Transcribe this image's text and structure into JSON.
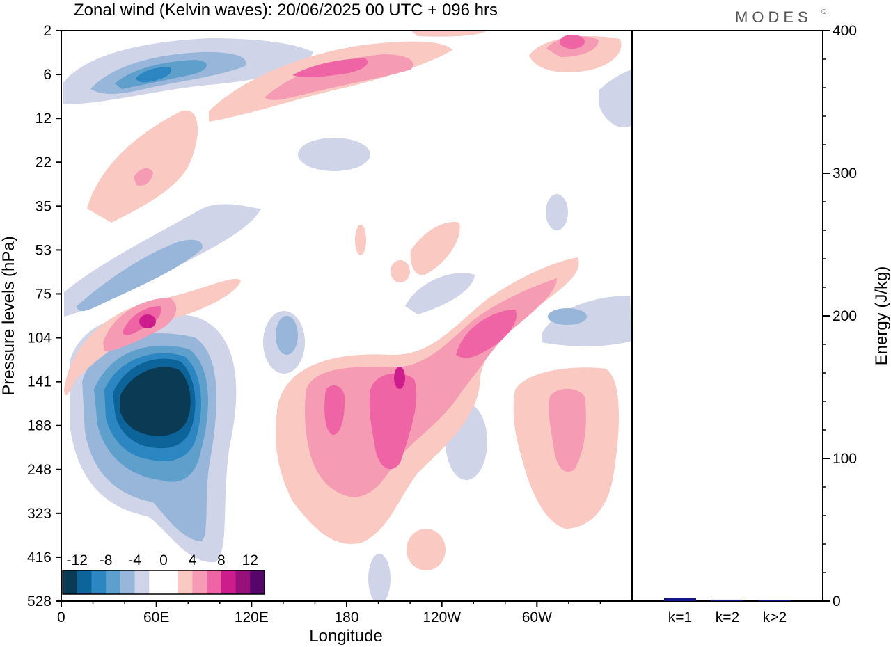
{
  "chart_data": [
    {
      "type": "heatmap",
      "title": "Zonal wind (Kelvin waves):  20/06/2025  00 UTC  + 096 hrs",
      "xlabel": "Longitude",
      "ylabel": "Pressure levels (hPa)",
      "x_ticks": [
        "0",
        "60E",
        "120E",
        "180",
        "120W",
        "60W"
      ],
      "y_ticks": [
        "2",
        "6",
        "12",
        "22",
        "35",
        "53",
        "75",
        "104",
        "141",
        "188",
        "248",
        "323",
        "416",
        "528"
      ],
      "colorbar": {
        "labels": [
          "-12",
          "-8",
          "-4",
          "0",
          "4",
          "8",
          "12"
        ],
        "colors": [
          "#0b3a55",
          "#0d649b",
          "#2b86c1",
          "#5f9fcc",
          "#97b6d9",
          "#cfd4e8",
          "#ffffff",
          "#ffffff",
          "#f9c9c2",
          "#f59bb4",
          "#ee64a4",
          "#cd1d8d",
          "#98107a",
          "#55066a"
        ]
      },
      "regions": [
        {
          "sign": "negative",
          "level": 3,
          "lon": 52,
          "plev": 160
        },
        {
          "sign": "negative",
          "level": 1,
          "lon": 55,
          "plev": 5
        },
        {
          "sign": "positive",
          "level": 2,
          "lon": 50,
          "plev": 95
        },
        {
          "sign": "positive",
          "level": 2,
          "lon": 205,
          "plev": 150
        },
        {
          "sign": "positive",
          "level": 2,
          "lon": 262,
          "plev": 110
        },
        {
          "sign": "positive",
          "level": 2,
          "lon": 325,
          "plev": 3
        }
      ]
    },
    {
      "type": "bar",
      "ylabel": "Energy (J/kg)",
      "categories": [
        "k=1",
        "k=2",
        "k>2"
      ],
      "values": [
        2,
        1,
        0.5
      ],
      "ylim": [
        0,
        400
      ],
      "y_ticks": [
        "0",
        "100",
        "200",
        "300",
        "400"
      ],
      "bar_color": "#14148c"
    }
  ],
  "brand": "MODES",
  "brand_mark": "©"
}
